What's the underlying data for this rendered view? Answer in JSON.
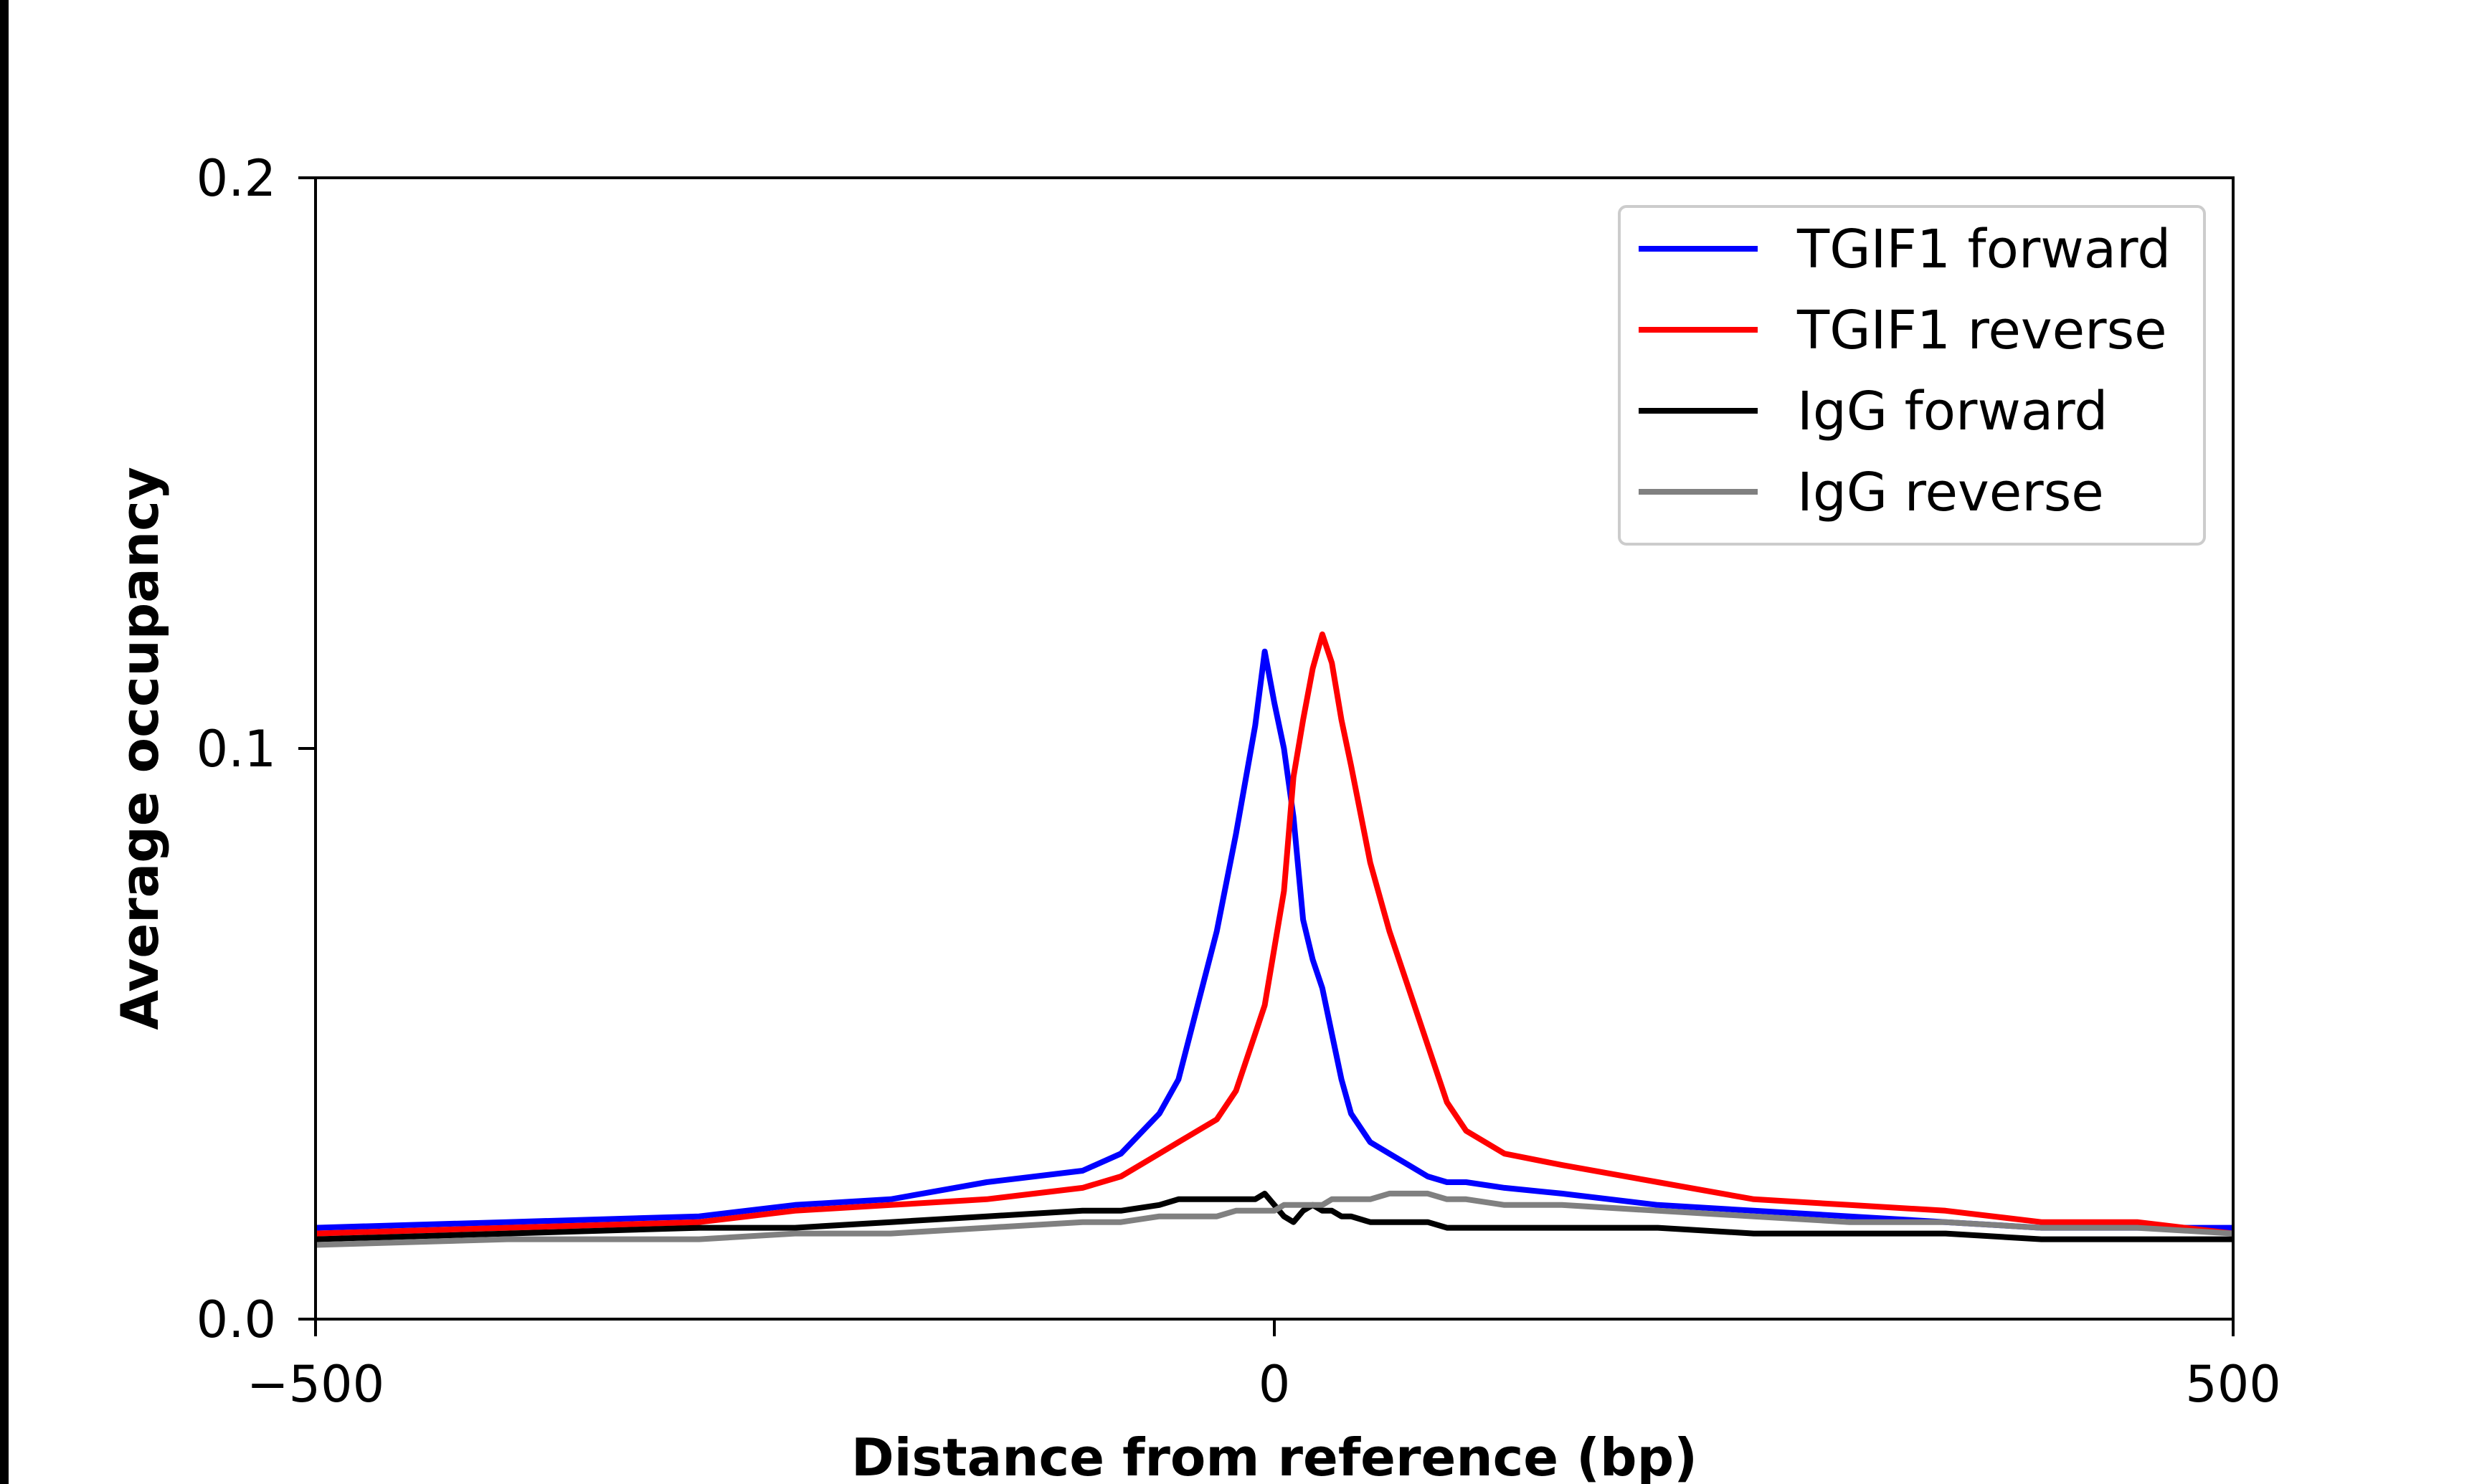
{
  "chart_data": {
    "type": "line",
    "title": "",
    "xlabel": "Distance from reference (bp)",
    "ylabel": "Average occupancy",
    "xlim": [
      -500,
      500
    ],
    "ylim": [
      0.0,
      0.2
    ],
    "xticks": [
      -500,
      0,
      500
    ],
    "xtick_labels": [
      "−500",
      "0",
      "500"
    ],
    "yticks": [
      0.0,
      0.1,
      0.2
    ],
    "ytick_labels": [
      "0.0",
      "0.1",
      "0.2"
    ],
    "grid": false,
    "legend_position": "top-right",
    "x": [
      -500,
      -400,
      -300,
      -250,
      -200,
      -150,
      -100,
      -80,
      -60,
      -50,
      -40,
      -30,
      -20,
      -10,
      -5,
      0,
      5,
      10,
      15,
      20,
      25,
      30,
      35,
      40,
      50,
      60,
      70,
      80,
      90,
      100,
      120,
      150,
      200,
      250,
      300,
      350,
      400,
      450,
      500
    ],
    "series": [
      {
        "name": "TGIF1 forward",
        "color": "#0000ff",
        "values": [
          0.016,
          0.017,
          0.018,
          0.02,
          0.021,
          0.024,
          0.026,
          0.029,
          0.036,
          0.042,
          0.055,
          0.068,
          0.085,
          0.104,
          0.117,
          0.108,
          0.1,
          0.088,
          0.07,
          0.063,
          0.058,
          0.05,
          0.042,
          0.036,
          0.031,
          0.029,
          0.027,
          0.025,
          0.024,
          0.024,
          0.023,
          0.022,
          0.02,
          0.019,
          0.018,
          0.017,
          0.016,
          0.016,
          0.016
        ]
      },
      {
        "name": "TGIF1 reverse",
        "color": "#ff0000",
        "values": [
          0.015,
          0.016,
          0.017,
          0.019,
          0.02,
          0.021,
          0.023,
          0.025,
          0.029,
          0.031,
          0.033,
          0.035,
          0.04,
          0.05,
          0.055,
          0.065,
          0.075,
          0.095,
          0.105,
          0.114,
          0.12,
          0.115,
          0.105,
          0.097,
          0.08,
          0.068,
          0.058,
          0.048,
          0.038,
          0.033,
          0.029,
          0.027,
          0.024,
          0.021,
          0.02,
          0.019,
          0.017,
          0.017,
          0.015
        ]
      },
      {
        "name": "IgG forward",
        "color": "#000000",
        "values": [
          0.014,
          0.015,
          0.016,
          0.016,
          0.017,
          0.018,
          0.019,
          0.019,
          0.02,
          0.021,
          0.021,
          0.021,
          0.021,
          0.021,
          0.022,
          0.02,
          0.018,
          0.017,
          0.019,
          0.02,
          0.019,
          0.019,
          0.018,
          0.018,
          0.017,
          0.017,
          0.017,
          0.017,
          0.016,
          0.016,
          0.016,
          0.016,
          0.016,
          0.015,
          0.015,
          0.015,
          0.014,
          0.014,
          0.014
        ]
      },
      {
        "name": "IgG reverse",
        "color": "#808080",
        "values": [
          0.013,
          0.014,
          0.014,
          0.015,
          0.015,
          0.016,
          0.017,
          0.017,
          0.018,
          0.018,
          0.018,
          0.018,
          0.019,
          0.019,
          0.019,
          0.019,
          0.02,
          0.02,
          0.02,
          0.02,
          0.02,
          0.021,
          0.021,
          0.021,
          0.021,
          0.022,
          0.022,
          0.022,
          0.021,
          0.021,
          0.02,
          0.02,
          0.019,
          0.018,
          0.017,
          0.017,
          0.016,
          0.016,
          0.015
        ]
      }
    ]
  }
}
